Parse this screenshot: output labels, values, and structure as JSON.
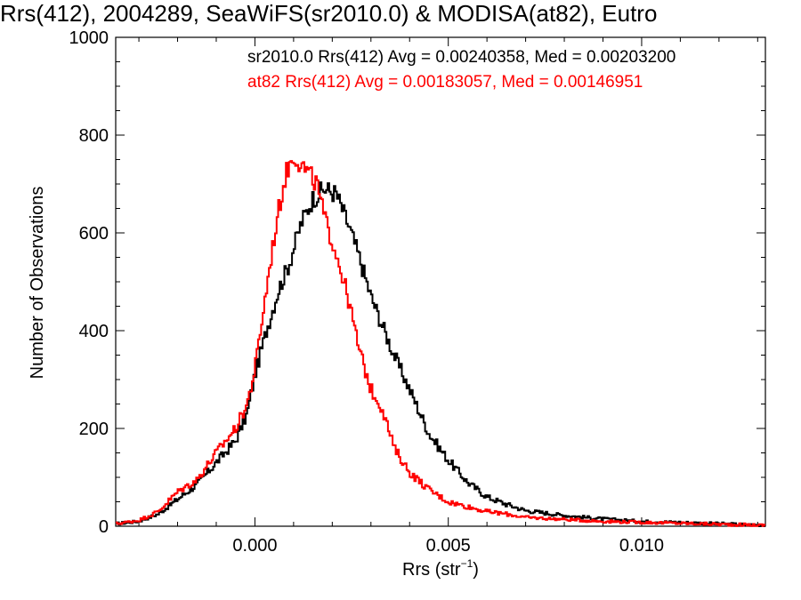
{
  "chart_data": {
    "type": "line",
    "title": "Rrs(412), 2004289, SeaWiFS(sr2010.0) & MODISA(at82), Eutro",
    "xlabel": "Rrs (str",
    "xlabel_sup": "−1",
    "xlabel_end": ")",
    "ylabel": "Number of Observations",
    "xlim": [
      -0.0036,
      0.0132
    ],
    "ylim": [
      0,
      1000
    ],
    "x_ticks": [
      {
        "value": 0.0,
        "label": "0.000"
      },
      {
        "value": 0.005,
        "label": "0.005"
      },
      {
        "value": 0.01,
        "label": "0.010"
      }
    ],
    "y_ticks": [
      {
        "value": 0,
        "label": "0"
      },
      {
        "value": 200,
        "label": "200"
      },
      {
        "value": 400,
        "label": "400"
      },
      {
        "value": 600,
        "label": "600"
      },
      {
        "value": 800,
        "label": "800"
      },
      {
        "value": 1000,
        "label": "1000"
      }
    ],
    "grid": false,
    "legend_position": "top-right",
    "series": [
      {
        "name": "sr2010.0",
        "color": "#000000",
        "legend_text": "sr2010.0 Rrs(412) Avg = 0.00240358, Med = 0.00203200",
        "x": [
          -0.0036,
          -0.003,
          -0.0025,
          -0.002,
          -0.0015,
          -0.001,
          -0.0005,
          -0.0002,
          0.0,
          0.0003,
          0.0006,
          0.0009,
          0.0012,
          0.0015,
          0.0018,
          0.0021,
          0.0024,
          0.0027,
          0.003,
          0.0033,
          0.0036,
          0.004,
          0.0045,
          0.005,
          0.0055,
          0.006,
          0.0065,
          0.007,
          0.008,
          0.009,
          0.01,
          0.011,
          0.012,
          0.0132
        ],
        "y": [
          5,
          10,
          25,
          55,
          85,
          130,
          175,
          230,
          310,
          400,
          480,
          540,
          620,
          670,
          690,
          680,
          620,
          550,
          470,
          410,
          350,
          280,
          190,
          135,
          90,
          60,
          45,
          32,
          22,
          15,
          10,
          8,
          5,
          2
        ]
      },
      {
        "name": "at82",
        "color": "#ff0000",
        "legend_text": "at82 Rrs(412) Avg = 0.00183057, Med = 0.00146951",
        "x": [
          -0.0036,
          -0.003,
          -0.0025,
          -0.002,
          -0.0015,
          -0.001,
          -0.0005,
          -0.0002,
          0.0,
          0.0002,
          0.0004,
          0.0006,
          0.0008,
          0.001,
          0.0012,
          0.0014,
          0.0016,
          0.0018,
          0.0021,
          0.0024,
          0.0027,
          0.003,
          0.0033,
          0.0036,
          0.004,
          0.0045,
          0.005,
          0.0055,
          0.006,
          0.0065,
          0.007,
          0.008,
          0.009,
          0.01,
          0.011,
          0.012,
          0.0132
        ],
        "y": [
          5,
          12,
          30,
          70,
          95,
          150,
          200,
          250,
          320,
          430,
          540,
          640,
          720,
          760,
          740,
          720,
          700,
          630,
          560,
          470,
          360,
          280,
          240,
          160,
          110,
          75,
          50,
          40,
          30,
          25,
          18,
          14,
          10,
          8,
          6,
          4,
          2
        ]
      }
    ]
  }
}
